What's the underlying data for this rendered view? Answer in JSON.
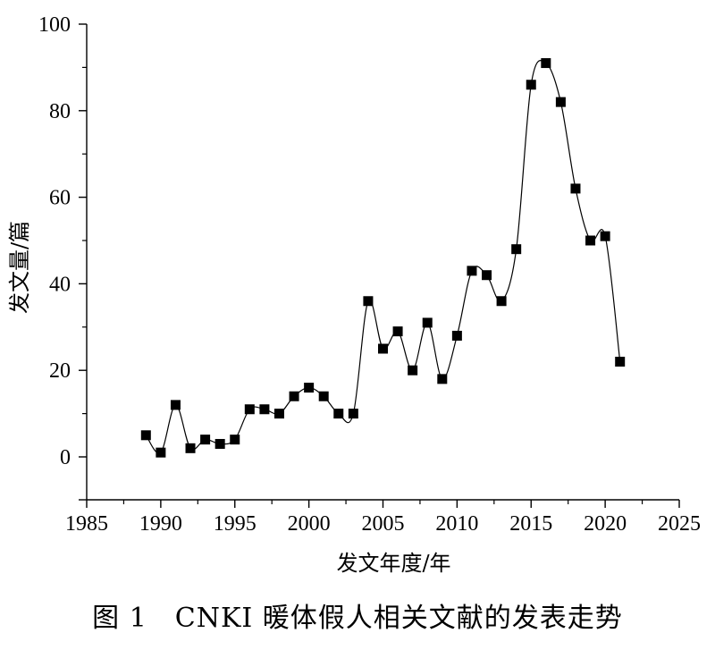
{
  "figure": {
    "caption": "图 1　CNKI 暖体假人相关文献的发表走势"
  },
  "chart_data": {
    "type": "line",
    "xlabel": "发文年度/年",
    "ylabel": "发文量/篇",
    "xlim": [
      1985,
      2025
    ],
    "ylim": [
      0,
      100
    ],
    "x_ticks": [
      1985,
      1990,
      1995,
      2000,
      2005,
      2010,
      2015,
      2020,
      2025
    ],
    "y_ticks": [
      0,
      20,
      40,
      60,
      80,
      100
    ],
    "grid": false,
    "marker": "square",
    "line_style": "smooth",
    "color": "#000000",
    "series": [
      {
        "x": [
          1989,
          1990,
          1991,
          1992,
          1993,
          1994,
          1995,
          1996,
          1997,
          1998,
          1999,
          2000,
          2001,
          2002,
          2003,
          2004,
          2005,
          2006,
          2007,
          2008,
          2009,
          2010,
          2011,
          2012,
          2013,
          2014,
          2015,
          2016,
          2017,
          2018,
          2019,
          2020,
          2021
        ],
        "values": [
          5,
          1,
          12,
          2,
          4,
          3,
          4,
          11,
          11,
          10,
          14,
          16,
          14,
          10,
          10,
          36,
          25,
          29,
          20,
          31,
          18,
          28,
          43,
          42,
          36,
          48,
          86,
          91,
          82,
          62,
          50,
          51,
          22
        ]
      }
    ]
  }
}
